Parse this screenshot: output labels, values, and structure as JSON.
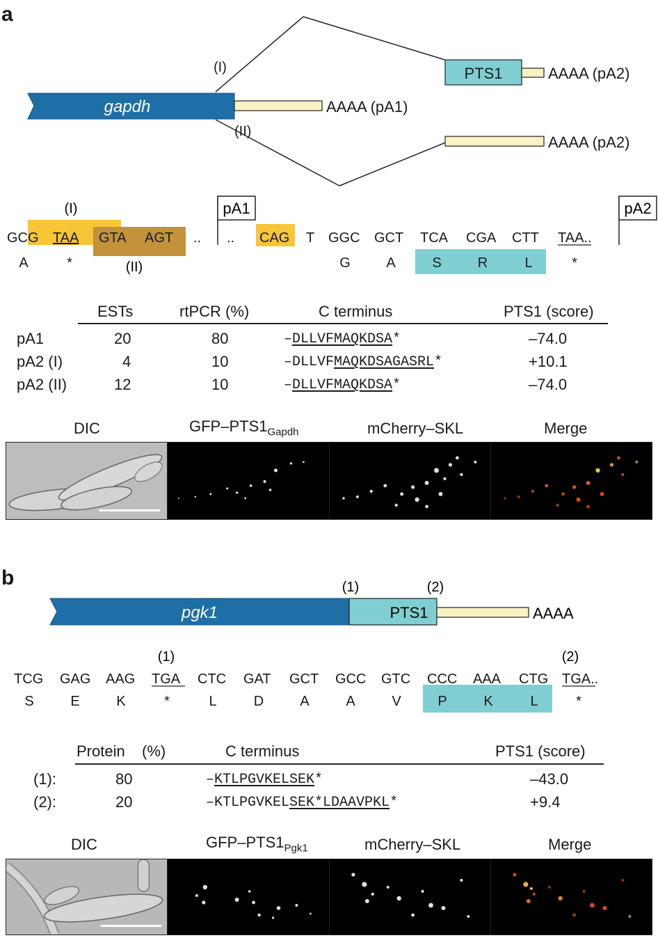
{
  "panel_a": {
    "label": "a",
    "gene": "gapdh",
    "pts1": "PTS1",
    "branch_I": "(I)",
    "branch_II": "(II)",
    "tail_pA1": "AAAA (pA1)",
    "tail_pA2_top": "AAAA (pA2)",
    "tail_pA2_bottom": "AAAA (pA2)",
    "seq": {
      "pA1_flag": "pA1",
      "pA2_flag": "pA2",
      "I": "(I)",
      "II": "(II)",
      "codons": [
        "GCG",
        "TAA",
        "GTA",
        "AGT",
        "..",
        "..",
        "CAG",
        "T",
        "GGC",
        "GCT",
        "TCA",
        "CGA",
        "CTT",
        "TAA.."
      ],
      "aa": [
        "A",
        "*",
        "G",
        "A",
        "S",
        "R",
        "L",
        "*"
      ]
    },
    "table": {
      "headers": [
        "ESTs",
        "rtPCR (%)",
        "C terminus",
        "PTS1 (score)"
      ],
      "rows": [
        {
          "label": "pA1",
          "ests": "20",
          "rtpcr": "80",
          "cterm_prefix": "–",
          "cterm_u": "DLLVFMAQKDSA",
          "cterm_rest": "*",
          "score": "–74.0"
        },
        {
          "label": "pA2 (I)",
          "ests": "4",
          "rtpcr": "10",
          "cterm_prefix": "–DLLVF",
          "cterm_u": "MAQKDSAGASRL",
          "cterm_rest": "*",
          "score": "+10.1"
        },
        {
          "label": "pA2 (II)",
          "ests": "12",
          "rtpcr": "10",
          "cterm_prefix": "–",
          "cterm_u": "DLLVFMAQKDSA",
          "cterm_rest": "*",
          "score": "–74.0"
        }
      ]
    },
    "images": {
      "dic": "DIC",
      "gfp": "GFP–PTS1",
      "gfp_sub": "Gapdh",
      "mcherry": "mCherry–SKL",
      "merge": "Merge"
    }
  },
  "panel_b": {
    "label": "b",
    "gene": "pgk1",
    "pts1": "PTS1",
    "mark1": "(1)",
    "mark2": "(2)",
    "tail": "AAAA",
    "seq": {
      "m1": "(1)",
      "m2": "(2)",
      "codons": [
        "TCG",
        "GAG",
        "AAG",
        "TGA",
        "CTC",
        "GAT",
        "GCT",
        "GCC",
        "GTC",
        "CCC",
        "AAA",
        "CTG",
        "TGA.."
      ],
      "aa": [
        "S",
        "E",
        "K",
        "*",
        "L",
        "D",
        "A",
        "A",
        "V",
        "P",
        "K",
        "L",
        "*"
      ]
    },
    "table": {
      "headers": [
        "Protein",
        "(%)",
        "C terminus",
        "PTS1 (score)"
      ],
      "rows": [
        {
          "label": "(1):",
          "protein": "80",
          "cterm_prefix": "–",
          "cterm_u": "KTLPGVKELSEK",
          "cterm_rest": "*",
          "score": "–43.0"
        },
        {
          "label": "(2):",
          "protein": "20",
          "cterm_prefix": "–KTLPGVKEL",
          "cterm_u": "SEK*LDAAVPKL",
          "cterm_rest": "*",
          "score": "+9.4"
        }
      ]
    },
    "images": {
      "dic": "DIC",
      "gfp": "GFP–PTS1",
      "gfp_sub": "Pgk1",
      "mcherry": "mCherry–SKL",
      "merge": "Merge"
    }
  },
  "colors": {
    "gene_blue": "#1e6ea8",
    "pts1_cyan": "#7fcfd2",
    "utr_cream": "#f8f2c4",
    "highlight_yellow": "#f7c536",
    "highlight_brown": "#c3923a",
    "dic_gray": "#bdbdbd"
  }
}
